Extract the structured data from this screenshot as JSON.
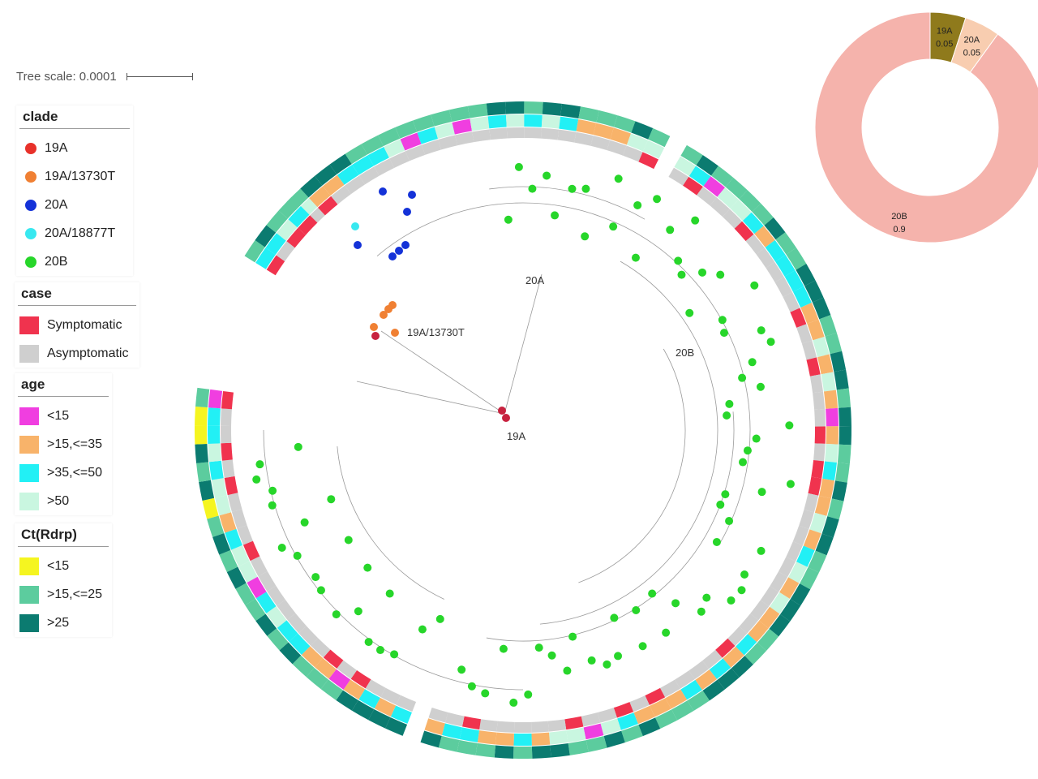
{
  "tree_scale": {
    "label": "Tree scale: 0.0001"
  },
  "legends": {
    "clade": {
      "title": "clade",
      "items": [
        {
          "label": "19A",
          "color": "#e8312a"
        },
        {
          "label": "19A/13730T",
          "color": "#f08033"
        },
        {
          "label": "20A",
          "color": "#1432d8"
        },
        {
          "label": "20A/18877T",
          "color": "#38e8f0"
        },
        {
          "label": "20B",
          "color": "#27d62a"
        }
      ]
    },
    "case": {
      "title": "case",
      "items": [
        {
          "label": "Symptomatic",
          "color": "#f0334e"
        },
        {
          "label": "Asymptomatic",
          "color": "#cfcfcf"
        }
      ]
    },
    "age": {
      "title": "age",
      "items": [
        {
          "label": "<15",
          "color": "#f03ee0"
        },
        {
          "label": ">15,<=35",
          "color": "#f8b36a"
        },
        {
          "label": ">35,<=50",
          "color": "#22f0f5"
        },
        {
          "label": ">50",
          "color": "#c9f6e0"
        }
      ]
    },
    "ct": {
      "title": "Ct(Rdrp)",
      "items": [
        {
          "label": "<15",
          "color": "#f5f520"
        },
        {
          "label": ">15,<=25",
          "color": "#5ccc9e"
        },
        {
          "label": ">25",
          "color": "#0b7b70"
        }
      ]
    }
  },
  "tree": {
    "node_labels": [
      {
        "text": "20A"
      },
      {
        "text": "20B"
      },
      {
        "text": "19A/13730T"
      },
      {
        "text": "19A"
      }
    ],
    "ring_colors": {
      "case_symptomatic": "#f0334e",
      "case_asymptomatic": "#cfcfcf",
      "age": [
        "#f03ee0",
        "#f8b36a",
        "#22f0f5",
        "#c9f6e0"
      ],
      "ct": [
        "#f5f520",
        "#5ccc9e",
        "#0b7b70"
      ]
    }
  },
  "chart_data": {
    "type": "pie",
    "categories": [
      "19A",
      "20A",
      "20B"
    ],
    "values": [
      0.05,
      0.05,
      0.9
    ],
    "value_labels": [
      "0.05",
      "0.05",
      "0.9"
    ],
    "colors": [
      "#8f7a1c",
      "#f8cdb0",
      "#f5b3ac"
    ],
    "donut": true
  }
}
